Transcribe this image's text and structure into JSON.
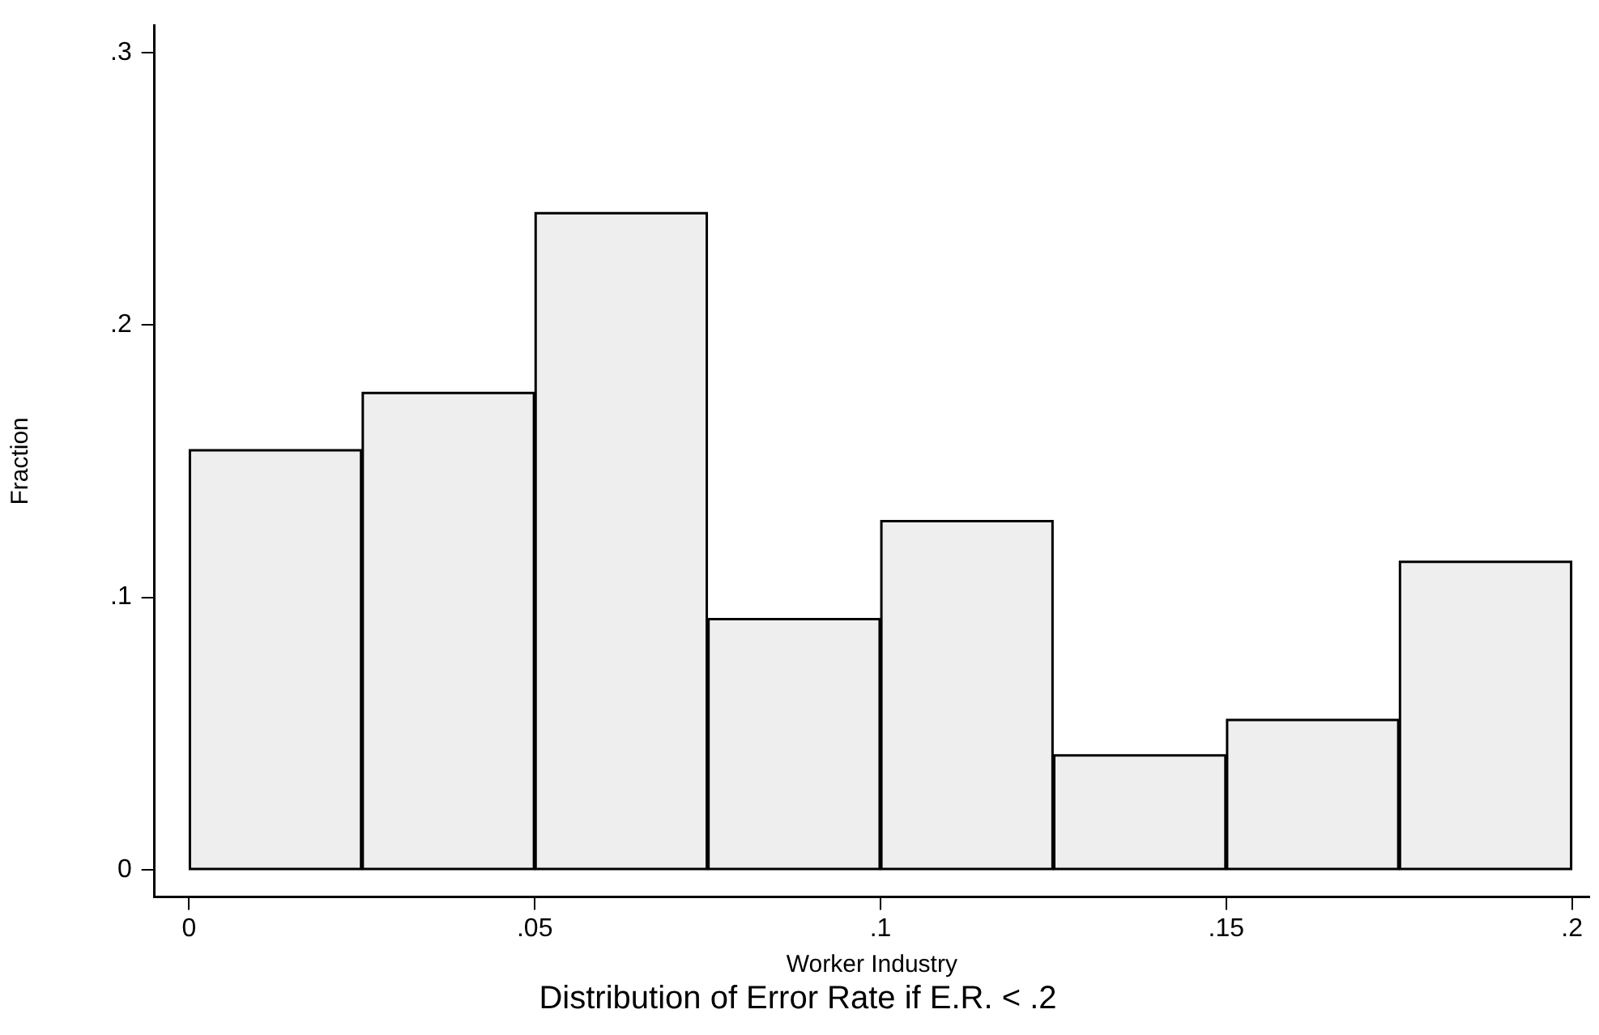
{
  "chart_data": {
    "type": "histogram",
    "title": "Distribution of Error Rate if E.R. < .2",
    "xlabel": "Worker Industry",
    "ylabel": "Fraction",
    "bins": [
      0,
      0.025,
      0.05,
      0.075,
      0.1,
      0.125,
      0.15,
      0.175,
      0.2
    ],
    "values": [
      0.154,
      0.175,
      0.241,
      0.092,
      0.128,
      0.042,
      0.055,
      0.113
    ],
    "color": "#eeeeee",
    "xlim": [
      -0.005,
      0.2025
    ],
    "ylim": [
      -0.01,
      0.31
    ],
    "xticks": [
      0,
      {
        "value": 0.05,
        "label": ".05"
      },
      {
        "value": 0.1,
        "label": ".1"
      },
      {
        "value": 0.15,
        "label": ".15"
      },
      {
        "value": 0.2,
        "label": ".2"
      }
    ],
    "yticks": [
      0,
      {
        "value": 0.1,
        "label": ".1"
      },
      {
        "value": 0.2,
        "label": ".2"
      },
      {
        "value": 0.3,
        "label": ".3"
      }
    ],
    "grid": false,
    "legend": false
  }
}
